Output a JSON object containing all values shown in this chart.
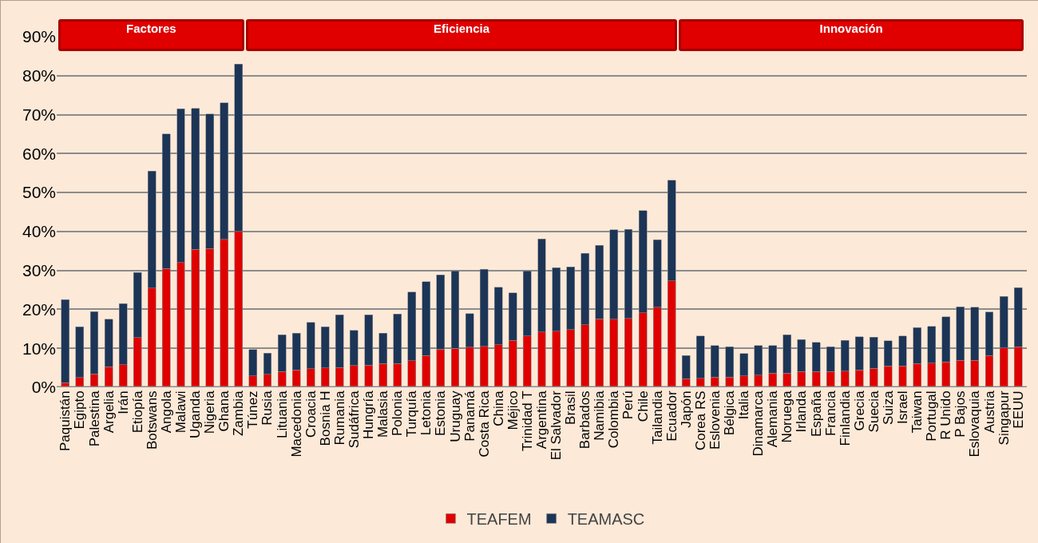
{
  "chart_data": {
    "type": "bar",
    "stacked": true,
    "categories": [
      "Paquistán",
      "Egipto",
      "Palestina",
      "Argelia",
      "Irán",
      "Etiopía",
      "Botswans",
      "Angola",
      "Malawi",
      "Uganda",
      "Nigeria",
      "Ghana",
      "Zambia",
      "Túnez",
      "Rusia",
      "Lituania",
      "Macedonia",
      "Croacia",
      "Bosnia H",
      "Rumania",
      "Sudáfrica",
      "Hungría",
      "Malasia",
      "Polonia",
      "Turquía",
      "Letonia",
      "Estonia",
      "Uruguay",
      "Panamá",
      "Costa Rica",
      "China",
      "Méjico",
      "Trinidad T",
      "Argentina",
      "El Salvador",
      "Brasil",
      "Barbados",
      "Namibia",
      "Colombia",
      "Perú",
      "Chile",
      "Tailandia",
      "Ecuador",
      "Japón",
      "Corea RS",
      "Eslovenia",
      "Bélgica",
      "Italia",
      "Dinamarca",
      "Alemania",
      "Noruega",
      "Irlanda",
      "España",
      "Francia",
      "Finlandia",
      "Grecia",
      "Suecia",
      "Suiza",
      "Israel",
      "Taiwan",
      "Portugal",
      "R Unido",
      "P Bajos",
      "Eslovaquia",
      "Austria",
      "Singapur",
      "EEUU"
    ],
    "series": [
      {
        "name": "TEAFEM",
        "color": "#e00000",
        "values": [
          1.2,
          2.5,
          3.4,
          5.3,
          5.8,
          12.8,
          25.5,
          30.5,
          32,
          35.4,
          35.6,
          38,
          40,
          2.9,
          3.3,
          4,
          4.5,
          4.8,
          5,
          5.1,
          5.6,
          5.7,
          6.1,
          6.1,
          6.8,
          8.1,
          9.8,
          10,
          10.3,
          10.5,
          10.9,
          12,
          13.2,
          14.2,
          14.4,
          14.8,
          16,
          17.6,
          17.5,
          17.7,
          19.1,
          20.6,
          27.3,
          2.2,
          2.3,
          2.6,
          2.6,
          2.9,
          3.1,
          3.6,
          3.6,
          4,
          4.1,
          4.1,
          4.2,
          4.5,
          4.9,
          5.5,
          5.5,
          6.1,
          6.2,
          6.5,
          6.9,
          6.9,
          8.1,
          10.1,
          10.4
        ]
      },
      {
        "name": "TEAMASC",
        "color": "#1c3557",
        "values": [
          21.3,
          13,
          16,
          12.2,
          15.7,
          16.7,
          30,
          34.5,
          39.5,
          36.2,
          34.6,
          35,
          43,
          6.8,
          5.5,
          9.5,
          9.4,
          11.9,
          10.5,
          13.5,
          9,
          12.9,
          7.8,
          12.7,
          17.6,
          19,
          19.1,
          19.9,
          8.6,
          19.8,
          14.8,
          12.2,
          16.7,
          23.9,
          16.3,
          16.1,
          18.4,
          18.8,
          22.9,
          22.8,
          26.3,
          17.3,
          25.8,
          5.9,
          10.9,
          8.1,
          7.8,
          5.8,
          7.6,
          7.1,
          9.9,
          8.3,
          7.4,
          6.3,
          7.8,
          8.5,
          8,
          6.4,
          7.7,
          9.2,
          9.4,
          11.6,
          13.8,
          13.7,
          11.2,
          13.2,
          15.2
        ]
      }
    ],
    "ylim": [
      0,
      90
    ],
    "yticks": [
      {
        "value": 0,
        "label": "0%"
      },
      {
        "value": 10,
        "label": "10%"
      },
      {
        "value": 20,
        "label": "20%"
      },
      {
        "value": 30,
        "label": "30%"
      },
      {
        "value": 40,
        "label": "40%"
      },
      {
        "value": 50,
        "label": "50%"
      },
      {
        "value": 60,
        "label": "60%"
      },
      {
        "value": 70,
        "label": "70%"
      },
      {
        "value": 80,
        "label": "80%"
      },
      {
        "value": 90,
        "label": "90%"
      }
    ],
    "grid": "y",
    "legend": "bottom",
    "annotations": [
      "Factores",
      "Eficiencia",
      "Innovación"
    ]
  }
}
